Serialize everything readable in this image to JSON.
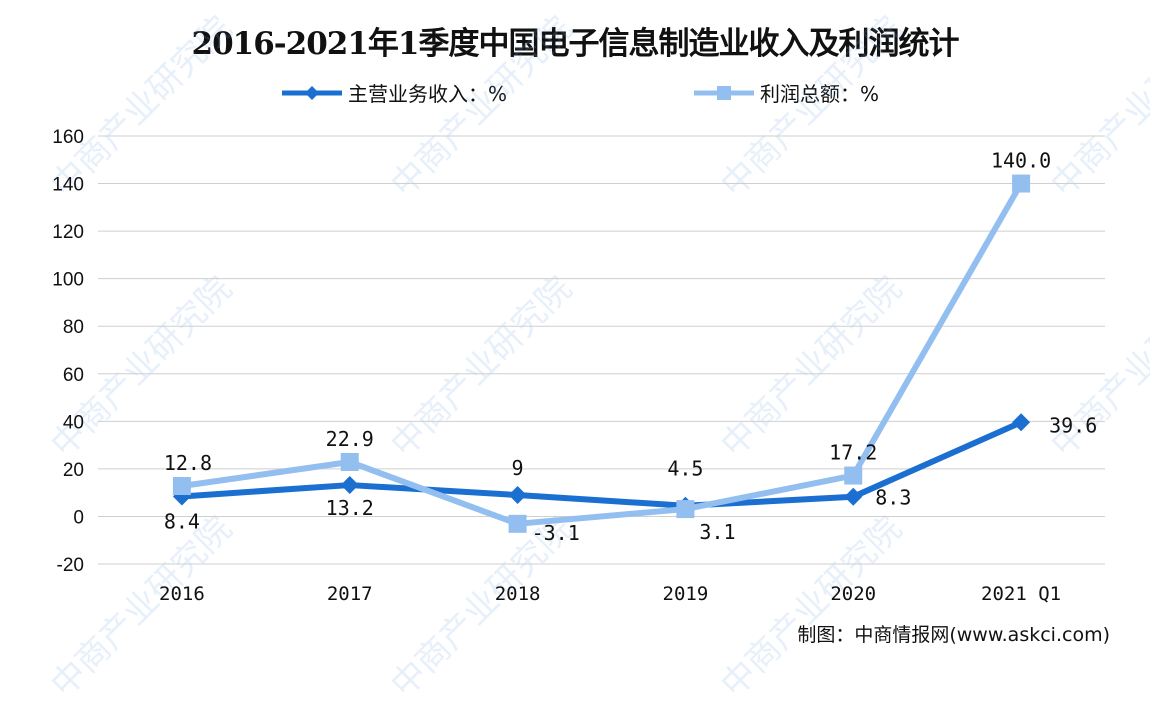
{
  "chart_data": {
    "type": "line",
    "title": "2016-2021年1季度中国电子信息制造业收入及利润统计",
    "categories": [
      "2016",
      "2017",
      "2018",
      "2019",
      "2020",
      "2021 Q1"
    ],
    "series": [
      {
        "name": "主营业务收入：%",
        "values": [
          8.4,
          13.2,
          9,
          4.5,
          8.3,
          39.6
        ],
        "labels": [
          "8.4",
          "13.2",
          "9",
          "4.5",
          "8.3",
          "39.6"
        ],
        "color": "#1a6fd0",
        "marker": "diamond"
      },
      {
        "name": "利润总额：%",
        "values": [
          12.8,
          22.9,
          -3.1,
          3.1,
          17.2,
          140.0
        ],
        "labels": [
          "12.8",
          "22.9",
          "-3.1",
          "3.1",
          "17.2",
          "140.0"
        ],
        "color": "#93bff0",
        "marker": "square"
      }
    ],
    "ylim": [
      -20,
      160
    ],
    "yticks": [
      "-20",
      "0",
      "20",
      "40",
      "60",
      "80",
      "100",
      "120",
      "140",
      "160"
    ],
    "grid": true,
    "legend": "top"
  },
  "source": "制图：中商情报网(www.askci.com)",
  "watermark": "中商产业研究院"
}
